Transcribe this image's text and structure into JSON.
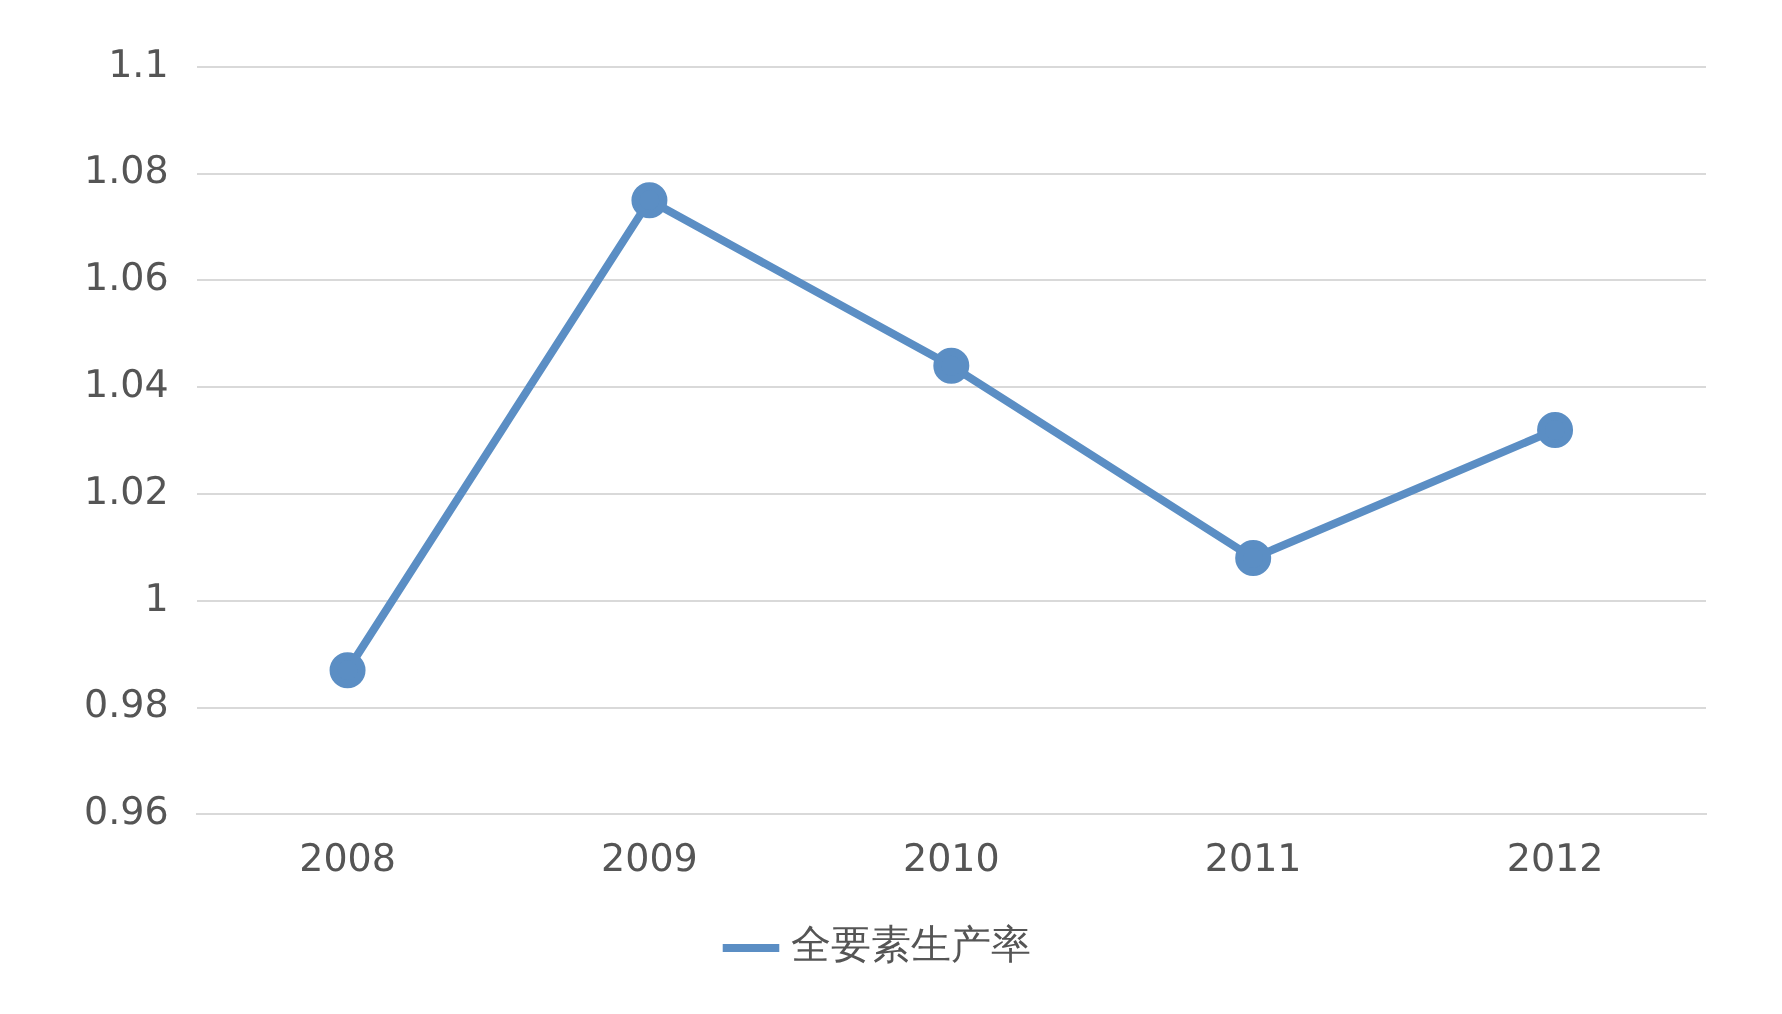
{
  "chart_data": {
    "type": "line",
    "categories": [
      "2008",
      "2009",
      "2010",
      "2011",
      "2012"
    ],
    "series": [
      {
        "name": "全要素生产率",
        "color": "#5b8ec4",
        "values": [
          0.987,
          1.075,
          1.044,
          1.008,
          1.032
        ]
      }
    ],
    "ylim": [
      0.96,
      1.1
    ],
    "yticks": [
      0.96,
      0.98,
      1,
      1.02,
      1.04,
      1.06,
      1.08,
      1.1
    ],
    "grid": "y",
    "legend": "bottom",
    "marker": "circle",
    "line_style": "solid"
  }
}
